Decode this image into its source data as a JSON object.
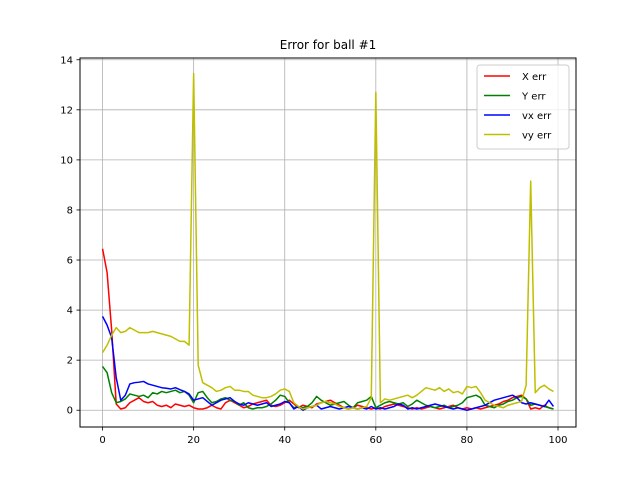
{
  "chart_data": {
    "type": "line",
    "title": "Error for ball #1",
    "xlabel": "",
    "ylabel": "",
    "xlim": [
      -4.95,
      103.95
    ],
    "ylim": [
      -0.67,
      14.07
    ],
    "xticks": [
      0,
      20,
      40,
      60,
      80,
      100
    ],
    "yticks": [
      0,
      2,
      4,
      6,
      8,
      10,
      12,
      14
    ],
    "grid": true,
    "legend_position": "top-right",
    "series": [
      {
        "name": "X err",
        "color": "#ff0000",
        "x": [
          0,
          1,
          2,
          3,
          4,
          5,
          6,
          7,
          8,
          9,
          10,
          11,
          12,
          13,
          14,
          15,
          16,
          17,
          18,
          19,
          20,
          21,
          22,
          23,
          24,
          25,
          26,
          27,
          28,
          29,
          30,
          31,
          32,
          33,
          34,
          35,
          36,
          37,
          38,
          39,
          40,
          41,
          42,
          43,
          44,
          45,
          46,
          47,
          48,
          49,
          50,
          51,
          52,
          53,
          54,
          55,
          56,
          57,
          58,
          59,
          60,
          61,
          62,
          63,
          64,
          65,
          66,
          67,
          68,
          69,
          70,
          71,
          72,
          73,
          74,
          75,
          76,
          77,
          78,
          79,
          80,
          81,
          82,
          83,
          84,
          85,
          86,
          87,
          88,
          89,
          90,
          91,
          92,
          93,
          94,
          95,
          96,
          97,
          98,
          99
        ],
        "y": [
          6.45,
          5.5,
          3.2,
          0.25,
          0.05,
          0.1,
          0.3,
          0.4,
          0.5,
          0.35,
          0.3,
          0.35,
          0.2,
          0.15,
          0.2,
          0.1,
          0.25,
          0.2,
          0.15,
          0.2,
          0.1,
          0.05,
          0.05,
          0.1,
          0.2,
          0.1,
          0.05,
          0.3,
          0.4,
          0.3,
          0.2,
          0.1,
          0.15,
          0.25,
          0.3,
          0.35,
          0.4,
          0.2,
          0.15,
          0.2,
          0.3,
          0.4,
          0.25,
          0.1,
          0.2,
          0.15,
          0.1,
          0.25,
          0.3,
          0.35,
          0.4,
          0.3,
          0.2,
          0.1,
          0.05,
          0.1,
          0.2,
          0.15,
          0.1,
          0.05,
          0.1,
          0.05,
          0.15,
          0.2,
          0.25,
          0.2,
          0.15,
          0.1,
          0.05,
          0.1,
          0.05,
          0.1,
          0.15,
          0.1,
          0.05,
          0.1,
          0.15,
          0.2,
          0.1,
          0.05,
          0.1,
          0.05,
          0.1,
          0.05,
          0.1,
          0.15,
          0.2,
          0.25,
          0.35,
          0.4,
          0.5,
          0.55,
          0.6,
          0.45,
          0.05,
          0.1,
          0.05,
          0.2,
          0.1,
          0.05
        ]
      },
      {
        "name": "Y err",
        "color": "#008000",
        "x": [
          0,
          1,
          2,
          3,
          4,
          5,
          6,
          7,
          8,
          9,
          10,
          11,
          12,
          13,
          14,
          15,
          16,
          17,
          18,
          19,
          20,
          21,
          22,
          23,
          24,
          25,
          26,
          27,
          28,
          29,
          30,
          31,
          32,
          33,
          34,
          35,
          36,
          37,
          38,
          39,
          40,
          41,
          42,
          43,
          44,
          45,
          46,
          47,
          48,
          49,
          50,
          51,
          52,
          53,
          54,
          55,
          56,
          57,
          58,
          59,
          60,
          61,
          62,
          63,
          64,
          65,
          66,
          67,
          68,
          69,
          70,
          71,
          72,
          73,
          74,
          75,
          76,
          77,
          78,
          79,
          80,
          81,
          82,
          83,
          84,
          85,
          86,
          87,
          88,
          89,
          90,
          91,
          92,
          93,
          94,
          95,
          96,
          97,
          98,
          99
        ],
        "y": [
          1.75,
          1.5,
          0.7,
          0.3,
          0.35,
          0.45,
          0.65,
          0.6,
          0.55,
          0.6,
          0.5,
          0.7,
          0.65,
          0.75,
          0.7,
          0.75,
          0.8,
          0.7,
          0.75,
          0.6,
          0.3,
          0.7,
          0.75,
          0.5,
          0.3,
          0.35,
          0.45,
          0.5,
          0.4,
          0.35,
          0.2,
          0.3,
          0.1,
          0.05,
          0.1,
          0.1,
          0.15,
          0.25,
          0.4,
          0.6,
          0.55,
          0.3,
          0.1,
          0.15,
          0.1,
          0.15,
          0.3,
          0.55,
          0.4,
          0.3,
          0.2,
          0.25,
          0.3,
          0.35,
          0.2,
          0.1,
          0.3,
          0.35,
          0.4,
          0.55,
          0.1,
          0.2,
          0.3,
          0.35,
          0.3,
          0.25,
          0.3,
          0.15,
          0.25,
          0.4,
          0.3,
          0.2,
          0.15,
          0.1,
          0.15,
          0.2,
          0.1,
          0.15,
          0.2,
          0.3,
          0.5,
          0.55,
          0.6,
          0.5,
          0.2,
          0.15,
          0.1,
          0.2,
          0.25,
          0.35,
          0.4,
          0.5,
          0.55,
          0.45,
          0.2,
          0.25,
          0.2,
          0.15,
          0.1,
          0.05
        ]
      },
      {
        "name": "vx err",
        "color": "#0000ff",
        "x": [
          0,
          1,
          2,
          3,
          4,
          5,
          6,
          7,
          8,
          9,
          10,
          11,
          12,
          13,
          14,
          15,
          16,
          17,
          18,
          19,
          20,
          21,
          22,
          23,
          24,
          25,
          26,
          27,
          28,
          29,
          30,
          31,
          32,
          33,
          34,
          35,
          36,
          37,
          38,
          39,
          40,
          41,
          42,
          43,
          44,
          45,
          46,
          47,
          48,
          49,
          50,
          51,
          52,
          53,
          54,
          55,
          56,
          57,
          58,
          59,
          60,
          61,
          62,
          63,
          64,
          65,
          66,
          67,
          68,
          69,
          70,
          71,
          72,
          73,
          74,
          75,
          76,
          77,
          78,
          79,
          80,
          81,
          82,
          83,
          84,
          85,
          86,
          87,
          88,
          89,
          90,
          91,
          92,
          93,
          94,
          95,
          96,
          97,
          98,
          99
        ],
        "y": [
          3.75,
          3.4,
          2.9,
          1.3,
          0.4,
          0.6,
          1.05,
          1.1,
          1.12,
          1.15,
          1.05,
          1.0,
          0.95,
          0.9,
          0.88,
          0.85,
          0.9,
          0.82,
          0.75,
          0.65,
          0.4,
          0.45,
          0.5,
          0.35,
          0.2,
          0.3,
          0.4,
          0.45,
          0.5,
          0.35,
          0.25,
          0.2,
          0.3,
          0.25,
          0.2,
          0.25,
          0.3,
          0.15,
          0.2,
          0.25,
          0.35,
          0.3,
          0.05,
          0.15,
          0.0,
          0.1,
          0.15,
          0.2,
          0.05,
          0.1,
          0.15,
          0.1,
          0.05,
          0.1,
          0.15,
          0.1,
          0.05,
          0.1,
          0.05,
          0.15,
          0.05,
          0.1,
          0.05,
          0.1,
          0.15,
          0.25,
          0.2,
          0.05,
          0.1,
          0.05,
          0.1,
          0.15,
          0.2,
          0.25,
          0.2,
          0.15,
          0.1,
          0.05,
          0.1,
          0.05,
          0.0,
          0.05,
          0.1,
          0.15,
          0.2,
          0.3,
          0.4,
          0.45,
          0.5,
          0.55,
          0.6,
          0.5,
          0.3,
          0.25,
          0.3,
          0.25,
          0.2,
          0.15,
          0.4,
          0.15
        ]
      },
      {
        "name": "vy err",
        "color": "#bfbf00",
        "x": [
          0,
          1,
          2,
          3,
          4,
          5,
          6,
          7,
          8,
          9,
          10,
          11,
          12,
          13,
          14,
          15,
          16,
          17,
          18,
          19,
          20,
          21,
          22,
          23,
          24,
          25,
          26,
          27,
          28,
          29,
          30,
          31,
          32,
          33,
          34,
          35,
          36,
          37,
          38,
          39,
          40,
          41,
          42,
          43,
          44,
          45,
          46,
          47,
          48,
          49,
          50,
          51,
          52,
          53,
          54,
          55,
          56,
          57,
          58,
          59,
          60,
          61,
          62,
          63,
          64,
          65,
          66,
          67,
          68,
          69,
          70,
          71,
          72,
          73,
          74,
          75,
          76,
          77,
          78,
          79,
          80,
          81,
          82,
          83,
          84,
          85,
          86,
          87,
          88,
          89,
          90,
          91,
          92,
          93,
          94,
          95,
          96,
          97,
          98,
          99
        ],
        "y": [
          2.3,
          2.6,
          3.0,
          3.3,
          3.1,
          3.15,
          3.3,
          3.2,
          3.1,
          3.1,
          3.1,
          3.15,
          3.1,
          3.05,
          3.0,
          2.95,
          2.85,
          2.75,
          2.75,
          2.6,
          13.45,
          1.8,
          1.1,
          1.0,
          0.9,
          0.75,
          0.8,
          0.9,
          0.95,
          0.8,
          0.8,
          0.75,
          0.75,
          0.6,
          0.55,
          0.5,
          0.5,
          0.55,
          0.65,
          0.8,
          0.85,
          0.75,
          0.3,
          0.15,
          0.05,
          0.1,
          0.15,
          0.2,
          0.3,
          0.35,
          0.3,
          0.25,
          0.15,
          0.1,
          0.05,
          0.1,
          0.05,
          0.1,
          0.15,
          0.5,
          12.7,
          0.3,
          0.45,
          0.4,
          0.45,
          0.5,
          0.55,
          0.6,
          0.5,
          0.6,
          0.75,
          0.9,
          0.85,
          0.8,
          0.9,
          0.75,
          0.85,
          0.7,
          0.75,
          0.65,
          0.95,
          0.9,
          0.95,
          0.7,
          0.4,
          0.3,
          0.2,
          0.15,
          0.1,
          0.2,
          0.25,
          0.3,
          0.35,
          1.0,
          9.15,
          0.7,
          0.9,
          1.0,
          0.85,
          0.75
        ]
      }
    ]
  }
}
